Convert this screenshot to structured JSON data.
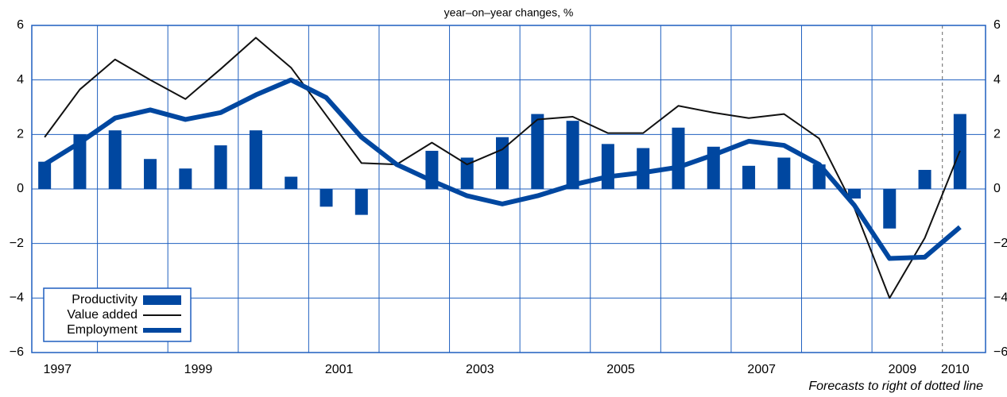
{
  "chart_data": {
    "type": "bar-line",
    "subtitle": "year–on–year changes, %",
    "note": "Forecasts to right of dotted line",
    "categories": [
      "1997",
      null,
      null,
      null,
      "1999",
      null,
      null,
      null,
      "2001",
      null,
      null,
      null,
      "2003",
      null,
      null,
      null,
      "2005",
      null,
      null,
      null,
      "2007",
      null,
      null,
      null,
      "2009",
      null,
      "2010"
    ],
    "series": [
      {
        "name": "Productivity",
        "kind": "bar",
        "color": "#0047a0",
        "values": [
          1.0,
          2.0,
          2.15,
          1.1,
          0.75,
          1.6,
          2.15,
          0.45,
          -0.65,
          -0.95,
          0,
          1.4,
          1.15,
          1.9,
          2.75,
          2.5,
          1.65,
          1.5,
          2.25,
          1.55,
          0.85,
          1.15,
          0.9,
          -0.35,
          -1.45,
          0.7,
          2.75
        ]
      },
      {
        "name": "Value added",
        "kind": "line",
        "color": "#111111",
        "width": 2,
        "values": [
          1.9,
          3.65,
          4.75,
          4.0,
          3.3,
          4.4,
          5.55,
          4.45,
          2.7,
          0.95,
          0.9,
          1.7,
          0.9,
          1.45,
          2.55,
          2.65,
          2.05,
          2.05,
          3.05,
          2.8,
          2.6,
          2.75,
          1.85,
          -0.7,
          -4.0,
          -1.8,
          1.4
        ]
      },
      {
        "name": "Employment",
        "kind": "line",
        "color": "#0047a0",
        "width": 6,
        "values": [
          0.9,
          1.7,
          2.6,
          2.9,
          2.55,
          2.8,
          3.45,
          4.0,
          3.35,
          1.9,
          0.9,
          0.3,
          -0.25,
          -0.55,
          -0.25,
          0.15,
          0.45,
          0.6,
          0.8,
          1.25,
          1.75,
          1.6,
          0.9,
          -0.6,
          -2.55,
          -2.5,
          -1.4
        ]
      }
    ],
    "ylim": [
      -6,
      6
    ],
    "yticks": [
      {
        "value": -6,
        "label": "−6"
      },
      {
        "value": -4,
        "label": "−4"
      },
      {
        "value": -2,
        "label": "−2"
      },
      0,
      2,
      4,
      6
    ],
    "grid": true,
    "grid_color": "#1f5fbf",
    "legend": "lower-left"
  }
}
